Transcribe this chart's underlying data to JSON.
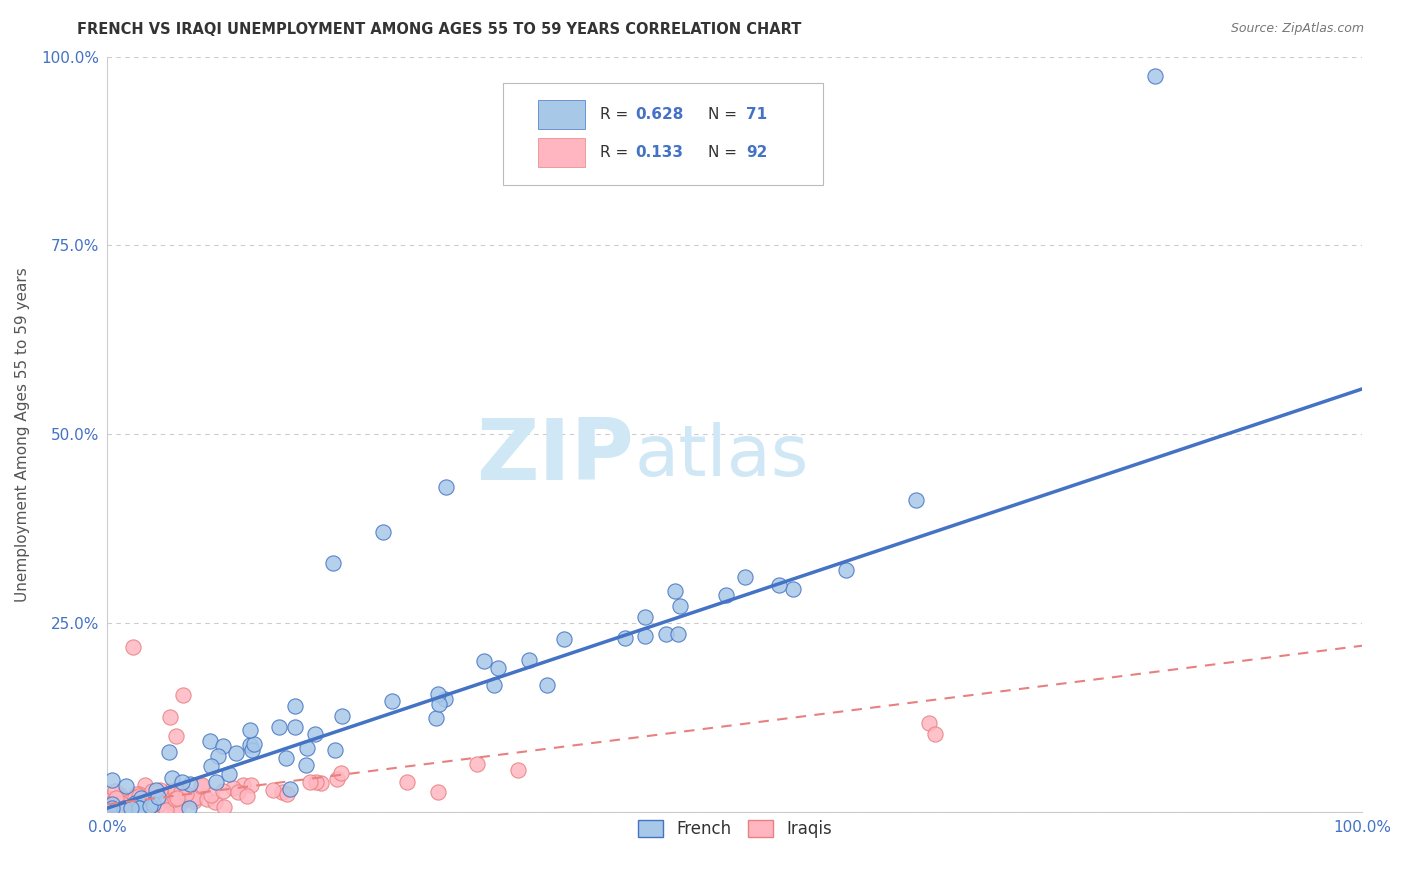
{
  "title": "FRENCH VS IRAQI UNEMPLOYMENT AMONG AGES 55 TO 59 YEARS CORRELATION CHART",
  "source": "Source: ZipAtlas.com",
  "ylabel": "Unemployment Among Ages 55 to 59 years",
  "french_color": "#a8c8e8",
  "french_edge_color": "#4472c4",
  "iraqi_color": "#ffb6c1",
  "iraqi_edge_color": "#e88080",
  "french_R": 0.628,
  "french_N": 71,
  "iraqi_R": 0.133,
  "iraqi_N": 92,
  "watermark_zip": "ZIP",
  "watermark_atlas": "atlas",
  "watermark_color": "#d0e8f5",
  "background_color": "#ffffff",
  "grid_color": "#cccccc",
  "tick_color": "#4472c4",
  "title_color": "#333333",
  "legend_label_color": "#333333",
  "legend_value_color": "#4472c4",
  "french_trend_color": "#4472c4",
  "iraqi_trend_color": "#e88080"
}
